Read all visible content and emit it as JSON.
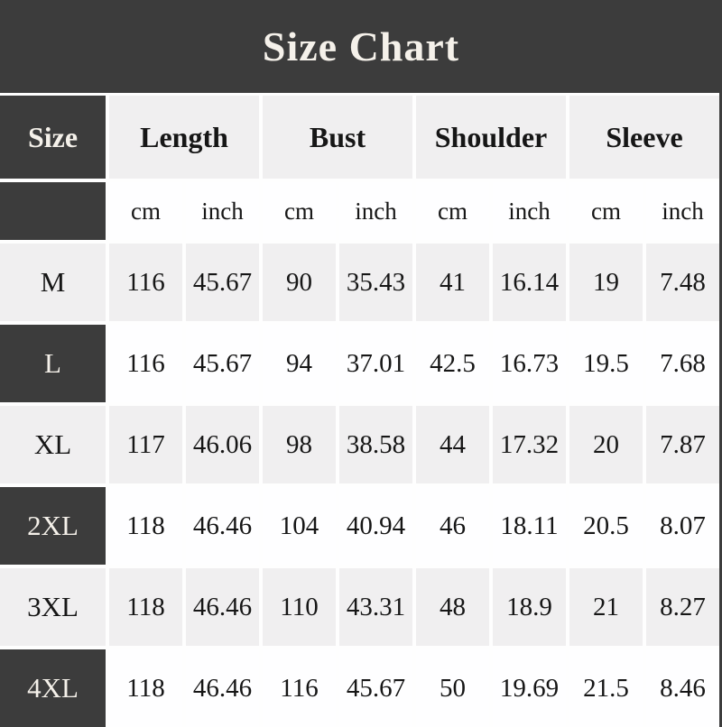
{
  "title": "Size Chart",
  "table": {
    "size_header": "Size",
    "group_headers": [
      "Length",
      "Bust",
      "Shoulder",
      "Sleeve"
    ],
    "unit_headers": [
      "cm",
      "inch",
      "cm",
      "inch",
      "cm",
      "inch",
      "cm",
      "inch"
    ],
    "rows": [
      {
        "size": "M",
        "values": [
          "116",
          "45.67",
          "90",
          "35.43",
          "41",
          "16.14",
          "19",
          "7.48"
        ]
      },
      {
        "size": "L",
        "values": [
          "116",
          "45.67",
          "94",
          "37.01",
          "42.5",
          "16.73",
          "19.5",
          "7.68"
        ]
      },
      {
        "size": "XL",
        "values": [
          "117",
          "46.06",
          "98",
          "38.58",
          "44",
          "17.32",
          "20",
          "7.87"
        ]
      },
      {
        "size": "2XL",
        "values": [
          "118",
          "46.46",
          "104",
          "40.94",
          "46",
          "18.11",
          "20.5",
          "8.07"
        ]
      },
      {
        "size": "3XL",
        "values": [
          "118",
          "46.46",
          "110",
          "43.31",
          "48",
          "18.9",
          "21",
          "8.27"
        ]
      },
      {
        "size": "4XL",
        "values": [
          "118",
          "46.46",
          "116",
          "45.67",
          "50",
          "19.69",
          "21.5",
          "8.46"
        ]
      }
    ]
  },
  "colors": {
    "background": "#3c3c3c",
    "dark_cell": "#3c3c3c",
    "light_cell": "#f0eff0",
    "white_cell": "#fefeff",
    "gridline": "#fefefe",
    "text_dark": "#161616",
    "text_light": "#f5f1ea"
  },
  "chart_data": {
    "type": "table",
    "title": "Size Chart",
    "columns": [
      "Size",
      "Length cm",
      "Length inch",
      "Bust cm",
      "Bust inch",
      "Shoulder cm",
      "Shoulder inch",
      "Sleeve cm",
      "Sleeve inch"
    ],
    "rows": [
      [
        "M",
        116,
        45.67,
        90,
        35.43,
        41,
        16.14,
        19,
        7.48
      ],
      [
        "L",
        116,
        45.67,
        94,
        37.01,
        42.5,
        16.73,
        19.5,
        7.68
      ],
      [
        "XL",
        117,
        46.06,
        98,
        38.58,
        44,
        17.32,
        20,
        7.87
      ],
      [
        "2XL",
        118,
        46.46,
        104,
        40.94,
        46,
        18.11,
        20.5,
        8.07
      ],
      [
        "3XL",
        118,
        46.46,
        110,
        43.31,
        48,
        18.9,
        21,
        8.27
      ],
      [
        "4XL",
        118,
        46.46,
        116,
        45.67,
        50,
        19.69,
        21.5,
        8.46
      ]
    ]
  }
}
